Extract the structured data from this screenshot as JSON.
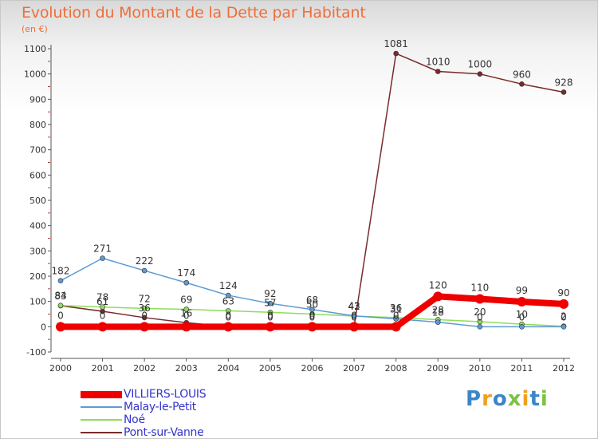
{
  "header": {
    "title": "Evolution du Montant de la Dette par Habitant",
    "unit": "(en €)"
  },
  "logo": {
    "text": "Proxiti"
  },
  "colors": {
    "axis": "#555555",
    "grid": "#dddddd",
    "tick_dash": "#cc3333",
    "label": "#333333",
    "legend_text": "#3333cc"
  },
  "chart_data": {
    "type": "line",
    "title": "Evolution du Montant de la Dette par Habitant",
    "ylabel": "(en €)",
    "xlabel": "",
    "x": [
      "2000",
      "2001",
      "2002",
      "2003",
      "2004",
      "2005",
      "2006",
      "2007",
      "2008",
      "2009",
      "2010",
      "2011",
      "2012"
    ],
    "ylim": [
      -100,
      1100
    ],
    "yticks": [
      -100,
      0,
      100,
      200,
      300,
      400,
      500,
      600,
      700,
      800,
      900,
      1000,
      1100
    ],
    "grid": false,
    "legend_position": "bottom-left",
    "series": [
      {
        "name": "VILLIERS-LOUIS",
        "color": "#ee0000",
        "values": [
          0,
          0,
          0,
          0,
          0,
          0,
          0,
          0,
          0,
          120,
          110,
          99,
          90
        ]
      },
      {
        "name": "Malay-le-Petit",
        "color": "#5b9bd5",
        "values": [
          182,
          271,
          222,
          174,
          124,
          92,
          68,
          43,
          31,
          18,
          0,
          0,
          0
        ]
      },
      {
        "name": "Noé",
        "color": "#8fdc5a",
        "values": [
          84,
          78,
          72,
          69,
          63,
          57,
          50,
          42,
          36,
          28,
          20,
          10,
          2
        ]
      },
      {
        "name": "Pont-sur-Vanne",
        "color": "#7a2a2a",
        "values": [
          83,
          61,
          36,
          16,
          0,
          0,
          0,
          0,
          1081,
          1010,
          1000,
          960,
          928
        ]
      }
    ]
  }
}
